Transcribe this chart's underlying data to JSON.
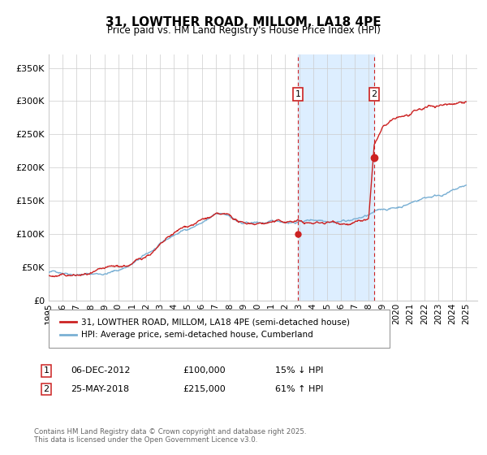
{
  "title": "31, LOWTHER ROAD, MILLOM, LA18 4PE",
  "subtitle": "Price paid vs. HM Land Registry's House Price Index (HPI)",
  "ytick_values": [
    0,
    50000,
    100000,
    150000,
    200000,
    250000,
    300000,
    350000
  ],
  "ylim": [
    0,
    370000
  ],
  "xlim_start": 1995.0,
  "xlim_end": 2025.8,
  "hpi_color": "#7ab0d4",
  "price_color": "#cc2222",
  "shaded_region_color": "#ddeeff",
  "transaction1_x": 2012.92,
  "transaction1_y": 100000,
  "transaction2_x": 2018.4,
  "transaction2_y": 215000,
  "legend_price_label": "31, LOWTHER ROAD, MILLOM, LA18 4PE (semi-detached house)",
  "legend_hpi_label": "HPI: Average price, semi-detached house, Cumberland",
  "annotation1_date": "06-DEC-2012",
  "annotation1_price": "£100,000",
  "annotation1_pct": "15% ↓ HPI",
  "annotation2_date": "25-MAY-2018",
  "annotation2_price": "£215,000",
  "annotation2_pct": "61% ↑ HPI",
  "footer": "Contains HM Land Registry data © Crown copyright and database right 2025.\nThis data is licensed under the Open Government Licence v3.0.",
  "background_color": "#ffffff",
  "grid_color": "#cccccc",
  "hpi_knots_x": [
    1995,
    1996,
    1997,
    1998,
    1999,
    2000,
    2001,
    2002,
    2003,
    2004,
    2005,
    2006,
    2007,
    2008,
    2009,
    2010,
    2011,
    2012,
    2013,
    2014,
    2015,
    2016,
    2017,
    2018,
    2019,
    2020,
    2021,
    2022,
    2023,
    2024,
    2025
  ],
  "hpi_knots_y": [
    42000,
    43000,
    43500,
    44000,
    45000,
    50000,
    60000,
    72000,
    85000,
    98000,
    108000,
    118000,
    128000,
    125000,
    112000,
    113000,
    112000,
    113000,
    115000,
    118000,
    120000,
    122000,
    125000,
    130000,
    137000,
    140000,
    148000,
    157000,
    162000,
    168000,
    175000
  ],
  "price_knots_x": [
    1995,
    1996,
    1997,
    1998,
    1999,
    2000,
    2001,
    2002,
    2003,
    2004,
    2005,
    2006,
    2007,
    2008,
    2009,
    2010,
    2011,
    2012,
    2012.92,
    2013,
    2014,
    2015,
    2016,
    2017,
    2018,
    2018.4,
    2019,
    2020,
    2021,
    2022,
    2023,
    2024,
    2025
  ],
  "price_knots_y": [
    37000,
    36500,
    36000,
    36500,
    37000,
    38000,
    42000,
    55000,
    70000,
    85000,
    95000,
    105000,
    110000,
    105000,
    92000,
    95000,
    98000,
    97000,
    100000,
    98000,
    95000,
    97000,
    100000,
    102000,
    105000,
    215000,
    240000,
    250000,
    255000,
    260000,
    265000,
    270000,
    278000
  ]
}
